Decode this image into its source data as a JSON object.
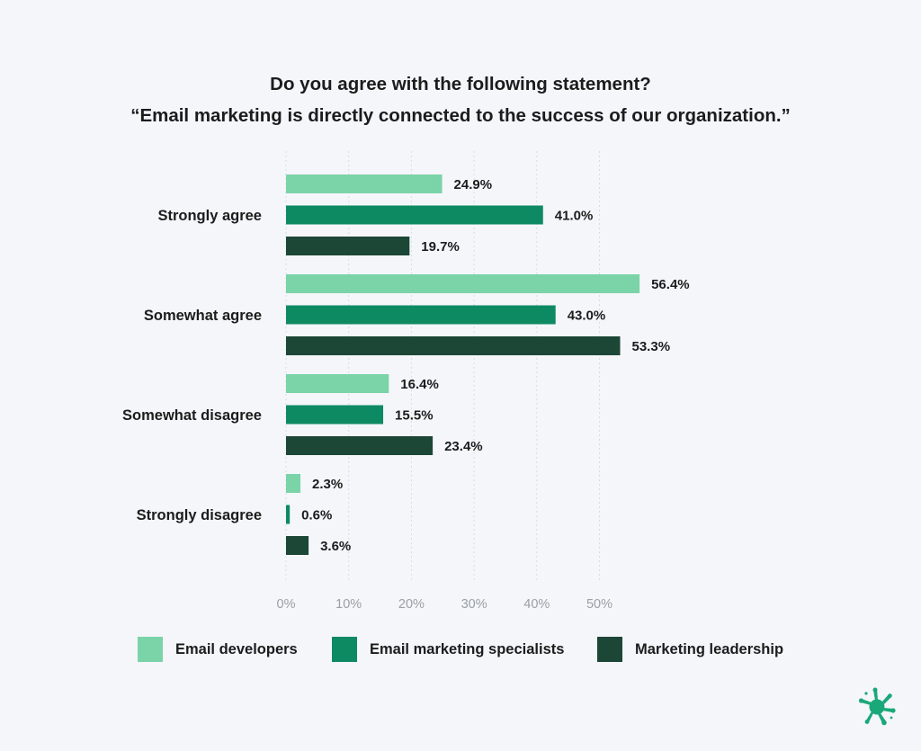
{
  "chart_data": {
    "type": "bar",
    "orientation": "horizontal",
    "title_line1": "Do you agree with the following statement?",
    "title_line2": "“Email marketing is directly connected to the success of our organization.”",
    "categories": [
      "Strongly agree",
      "Somewhat agree",
      "Somewhat disagree",
      "Strongly disagree"
    ],
    "series": [
      {
        "name": "Email developers",
        "color": "#7bd3a8",
        "values": [
          24.9,
          56.4,
          16.4,
          2.3
        ]
      },
      {
        "name": "Email marketing specialists",
        "color": "#0e8a63",
        "values": [
          41.0,
          43.0,
          15.5,
          0.6
        ]
      },
      {
        "name": "Marketing leadership",
        "color": "#1c4636",
        "values": [
          19.7,
          53.3,
          23.4,
          3.6
        ]
      }
    ],
    "value_suffix": "%",
    "value_decimals": 1,
    "xlim": [
      0,
      55
    ],
    "xticks": [
      0,
      10,
      20,
      30,
      40,
      50
    ],
    "xtick_labels": [
      "0%",
      "10%",
      "20%",
      "30%",
      "40%",
      "50%"
    ],
    "grid": "vertical dotted",
    "legend_position": "bottom"
  },
  "brand": {
    "logo_icon": "splash-logo-icon",
    "logo_color": "#1aa878"
  }
}
